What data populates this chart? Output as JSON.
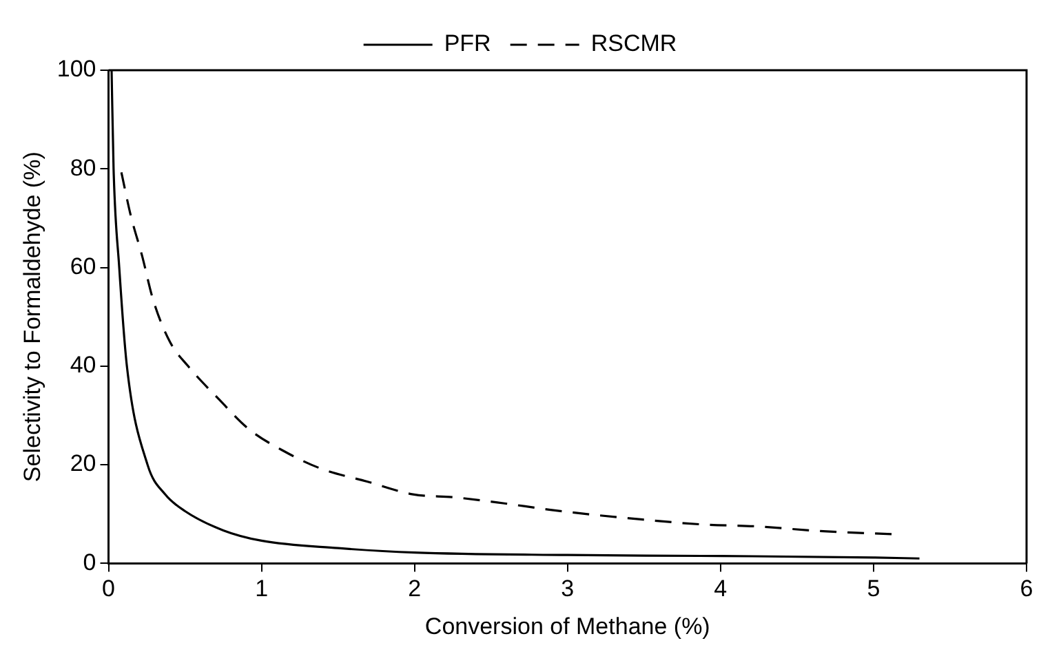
{
  "chart_data": {
    "type": "line",
    "xlabel": "Conversion of Methane (%)",
    "ylabel": "Selectivity to Formaldehyde (%)",
    "xlim": [
      0,
      6
    ],
    "xticks": [
      0,
      1,
      2,
      3,
      4,
      5,
      6
    ],
    "ylim": [
      0,
      100
    ],
    "yticks": [
      0,
      20,
      40,
      60,
      80,
      100
    ],
    "grid": false,
    "legend": "top",
    "marker": "none",
    "series": [
      {
        "name": "PFR",
        "color": "#000000",
        "line_style": "solid",
        "x": [
          0.02,
          0.033,
          0.07,
          0.12,
          0.255,
          0.37,
          0.5,
          0.75,
          1,
          1.5,
          2,
          3,
          4,
          5,
          5.3
        ],
        "values": [
          100,
          80,
          60,
          40,
          20,
          14,
          10.6,
          6.7,
          4.6,
          3.1,
          2.2,
          1.7,
          1.5,
          1.2,
          1
        ]
      },
      {
        "name": "RSCMR",
        "color": "#000000",
        "line_style": "dashed",
        "x": [
          0.084,
          0.144,
          0.22,
          0.29,
          0.4,
          0.52,
          0.73,
          0.91,
          1.15,
          1.39,
          1.69,
          1.99,
          2.26,
          2.58,
          2.88,
          3.19,
          3.49,
          3.88,
          4.24,
          4.63,
          5.14
        ],
        "values": [
          79.3,
          70.7,
          62.3,
          53.6,
          45,
          40,
          33,
          27.4,
          22.7,
          19.2,
          16.6,
          14,
          13.4,
          12.2,
          10.9,
          9.8,
          8.9,
          7.9,
          7.5,
          6.6,
          5.9
        ]
      }
    ]
  }
}
